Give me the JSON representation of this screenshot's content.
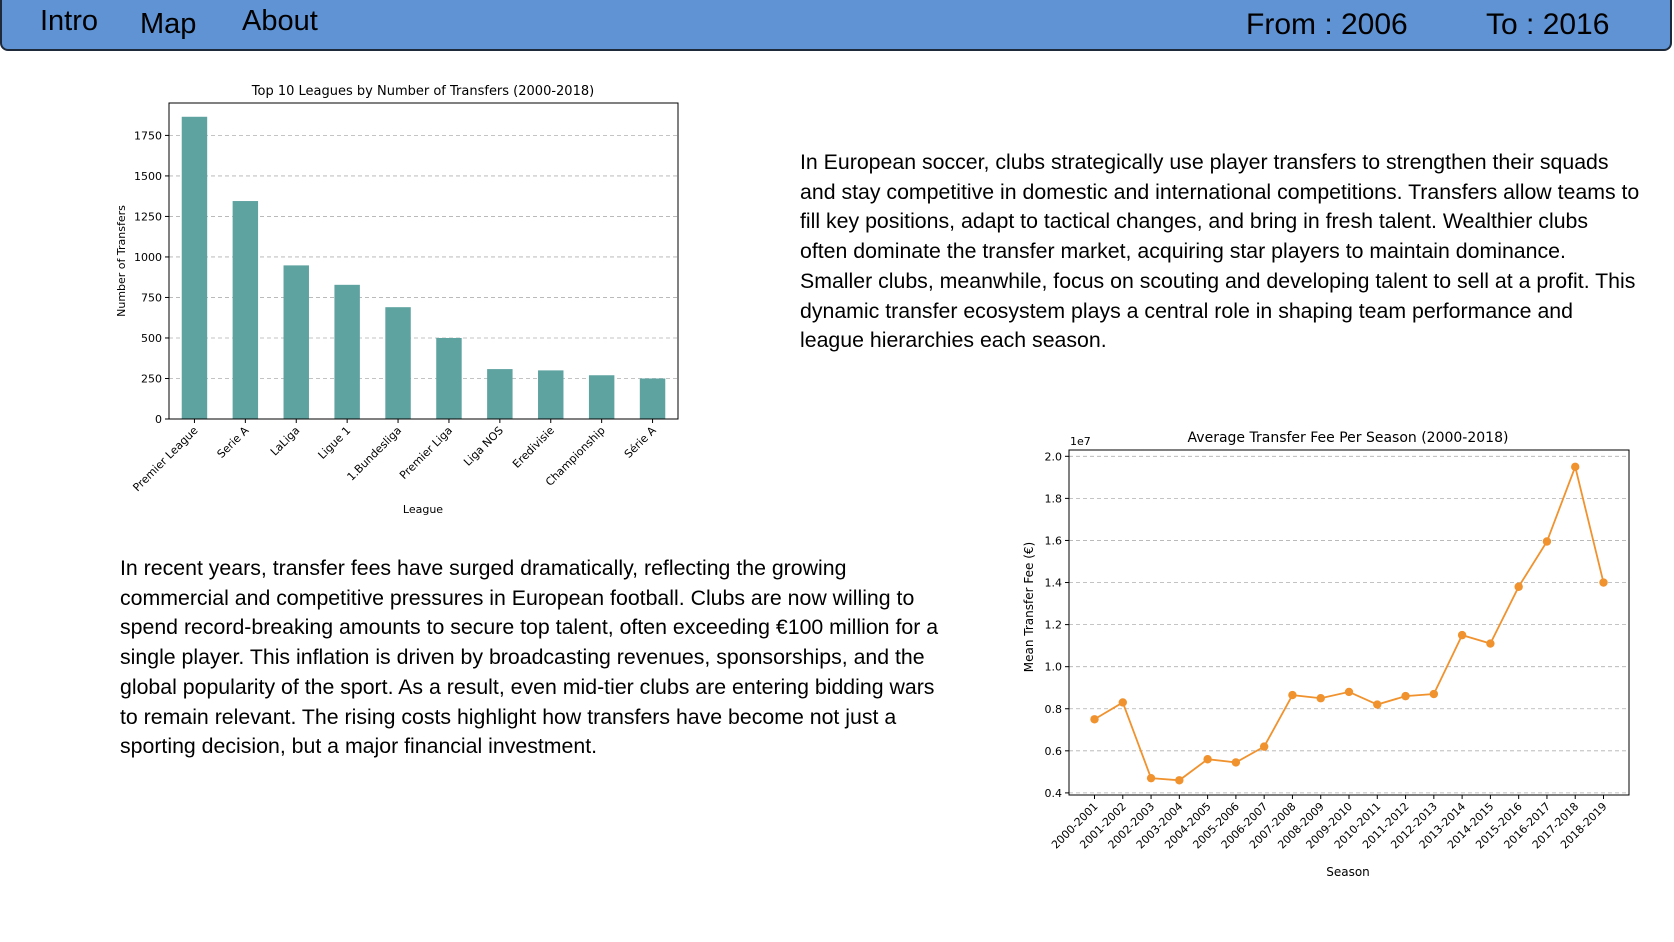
{
  "nav": {
    "intro": "Intro",
    "map": "Map",
    "about": "About",
    "from_label": "From : 2006",
    "to_label": "To : 2016"
  },
  "paragraphs": {
    "top": "In European soccer, clubs strategically use player transfers to strengthen their squads and stay competitive in domestic and international competitions. Transfers allow teams to fill key positions, adapt to tactical changes, and bring in fresh talent. Wealthier clubs often dominate the transfer market, acquiring star players to maintain dominance. Smaller clubs, meanwhile, focus on scouting and developing talent to sell at a profit. This dynamic transfer ecosystem plays a central role in shaping team performance and league hierarchies each season.",
    "bottom": "In recent years, transfer fees have surged dramatically, reflecting the growing commercial and competitive pressures in European football. Clubs are now willing to spend record-breaking amounts to secure top talent, often exceeding €100 million for a single player. This inflation is driven by broadcasting revenues, sponsorships, and the global popularity of the sport. As a result, even mid-tier clubs are entering bidding wars to remain relevant. The rising costs highlight how transfers have become not just a sporting decision, but a major financial investment."
  },
  "colors": {
    "navbar": "#5f93d4",
    "bar": "#5fa3a1",
    "line": "#f0922e"
  },
  "chart_data": [
    {
      "type": "bar",
      "title": "Top 10 Leagues by Number of Transfers (2000-2018)",
      "xlabel": "League",
      "ylabel": "Number of Transfers",
      "categories": [
        "Premier League",
        "Serie A",
        "LaLiga",
        "Ligue 1",
        "1.Bundesliga",
        "Premier Liga",
        "Liga NOS",
        "Eredivisie",
        "Championship",
        "Série A"
      ],
      "values": [
        1865,
        1345,
        948,
        828,
        690,
        500,
        308,
        300,
        270,
        250
      ],
      "ylim": [
        0,
        1950
      ],
      "yticks": [
        0,
        250,
        500,
        750,
        1000,
        1250,
        1500,
        1750
      ],
      "grid": "y-dashed"
    },
    {
      "type": "line",
      "title": "Average Transfer Fee Per Season (2000-2018)",
      "xlabel": "Season",
      "ylabel": "Mean Transfer Fee (€)",
      "y_offset_label": "1e7",
      "categories": [
        "2000-2001",
        "2001-2002",
        "2002-2003",
        "2003-2004",
        "2004-2005",
        "2005-2006",
        "2006-2007",
        "2007-2008",
        "2008-2009",
        "2009-2010",
        "2010-2011",
        "2011-2012",
        "2012-2013",
        "2013-2014",
        "2014-2015",
        "2015-2016",
        "2016-2017",
        "2017-2018",
        "2018-2019"
      ],
      "values": [
        0.75,
        0.83,
        0.47,
        0.46,
        0.56,
        0.545,
        0.62,
        0.865,
        0.85,
        0.88,
        0.82,
        0.86,
        0.87,
        1.15,
        1.11,
        1.38,
        1.595,
        1.95,
        1.4
      ],
      "ylim": [
        0.39,
        2.03
      ],
      "yticks": [
        "0.4",
        "0.6",
        "0.8",
        "1.0",
        "1.2",
        "1.4",
        "1.6",
        "1.8",
        "2.0"
      ],
      "grid": "y-dashed"
    }
  ]
}
